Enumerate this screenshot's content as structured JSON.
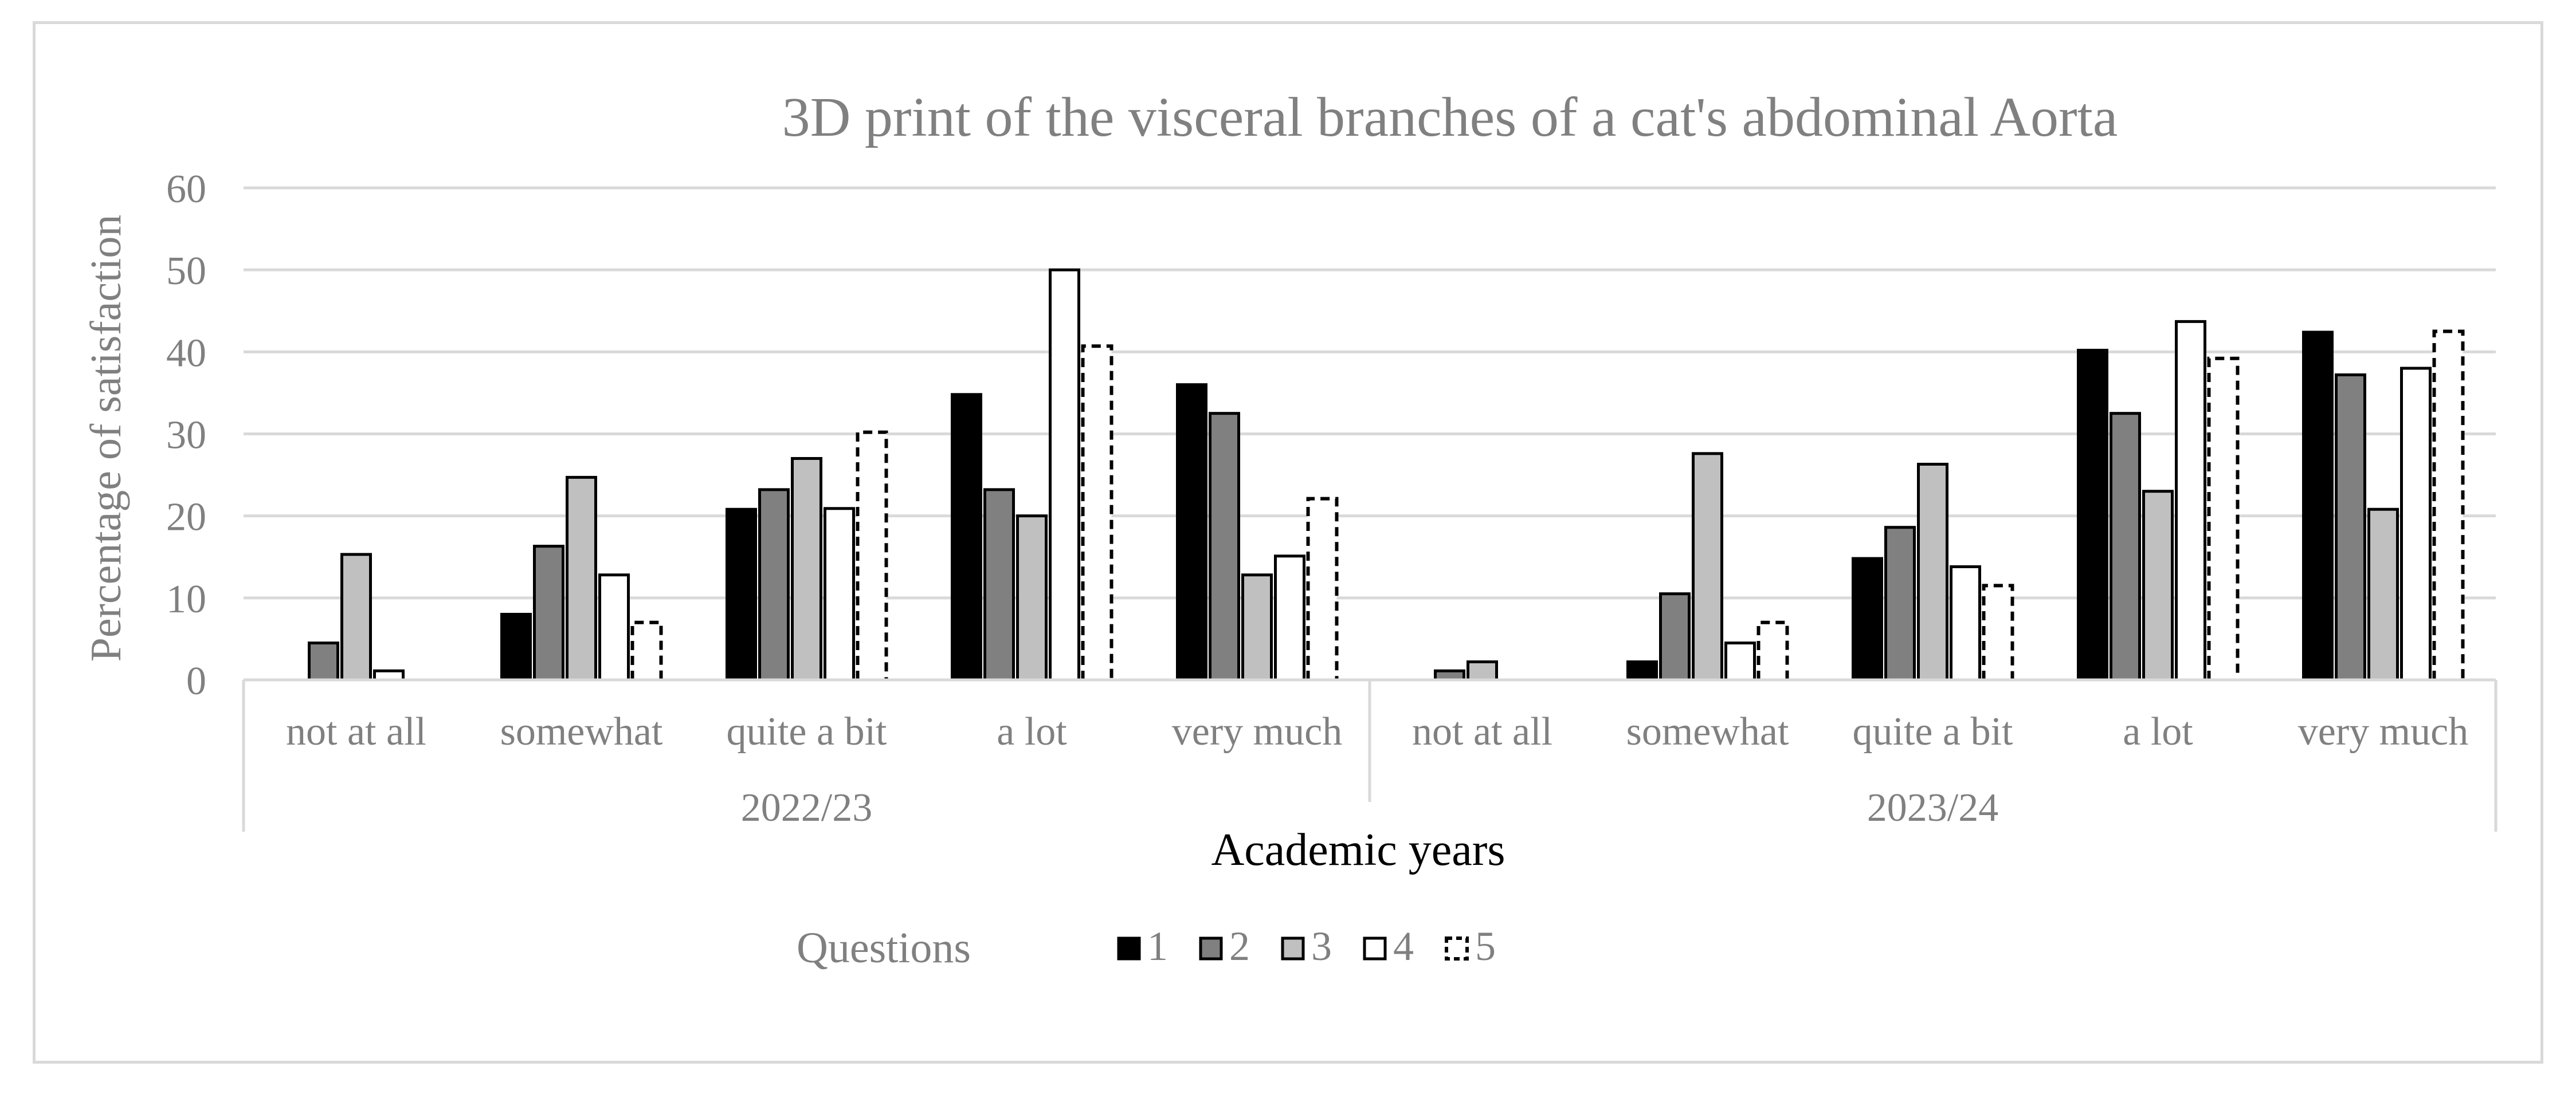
{
  "chart_data": {
    "type": "bar",
    "title": "3D print of the visceral branches of a cat's abdominal Aorta",
    "xlabel": "Academic years",
    "ylabel": "Percentage of satisfaction",
    "ylim": [
      0,
      60
    ],
    "yticks": [
      "0",
      "10",
      "20",
      "30",
      "40",
      "50",
      "60"
    ],
    "grid": true,
    "groups": [
      {
        "label": "2022/23",
        "categories": [
          "not at all",
          "somewhat",
          "quite a bit",
          "a lot",
          "very much"
        ]
      },
      {
        "label": "2023/24",
        "categories": [
          "not at all",
          "somewhat",
          "quite a bit",
          "a lot",
          "very much"
        ]
      }
    ],
    "legend": {
      "title": "Questions",
      "position": "bottom"
    },
    "series": [
      {
        "name": "1",
        "color": "#000000",
        "style": "solid",
        "values": [
          0,
          8,
          20.8,
          34.8,
          36,
          0,
          2.2,
          14.8,
          40.2,
          42.4
        ]
      },
      {
        "name": "2",
        "color": "#808080",
        "style": "solid",
        "values": [
          4.5,
          16.3,
          23.2,
          23.2,
          32.5,
          1.1,
          10.5,
          18.6,
          32.5,
          37.2
        ]
      },
      {
        "name": "3",
        "color": "#c0c0c0",
        "style": "solid",
        "values": [
          15.3,
          24.7,
          27,
          20,
          12.8,
          2.2,
          27.6,
          26.3,
          23,
          20.8
        ]
      },
      {
        "name": "4",
        "color": "#ffffff",
        "style": "solid",
        "values": [
          1.1,
          12.8,
          20.9,
          50,
          15.1,
          0,
          4.5,
          13.8,
          43.7,
          38
        ]
      },
      {
        "name": "5",
        "color": "#ffffff",
        "style": "dashed",
        "values": [
          0,
          7,
          30.2,
          40.7,
          22.1,
          0,
          7,
          11.5,
          39.2,
          42.5
        ]
      }
    ]
  }
}
